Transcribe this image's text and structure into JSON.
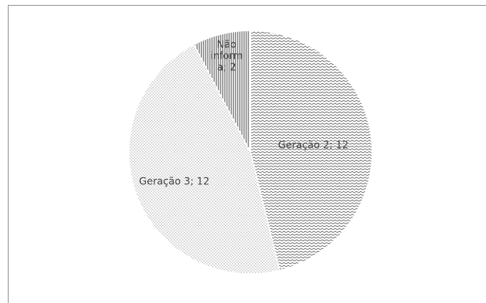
{
  "chart_data": {
    "type": "pie",
    "title": "",
    "slices": [
      {
        "label": "Geração 2",
        "value": 12,
        "data_label": "Geração 2; 12",
        "pattern": "zigzag"
      },
      {
        "label": "Geração 3",
        "value": 12,
        "data_label": "Geração 3; 12",
        "pattern": "dots"
      },
      {
        "label": "Não informa",
        "value": 2,
        "data_label_lines": [
          "Não",
          "inform",
          "a; 2"
        ],
        "pattern": "vertical-lines"
      }
    ],
    "start_angle_deg": 0,
    "direction": "clockwise",
    "legend": "none",
    "colors": {
      "stroke": "#ffffff",
      "pattern_ink": "#595959",
      "text": "#404040",
      "border": "#898989"
    }
  }
}
